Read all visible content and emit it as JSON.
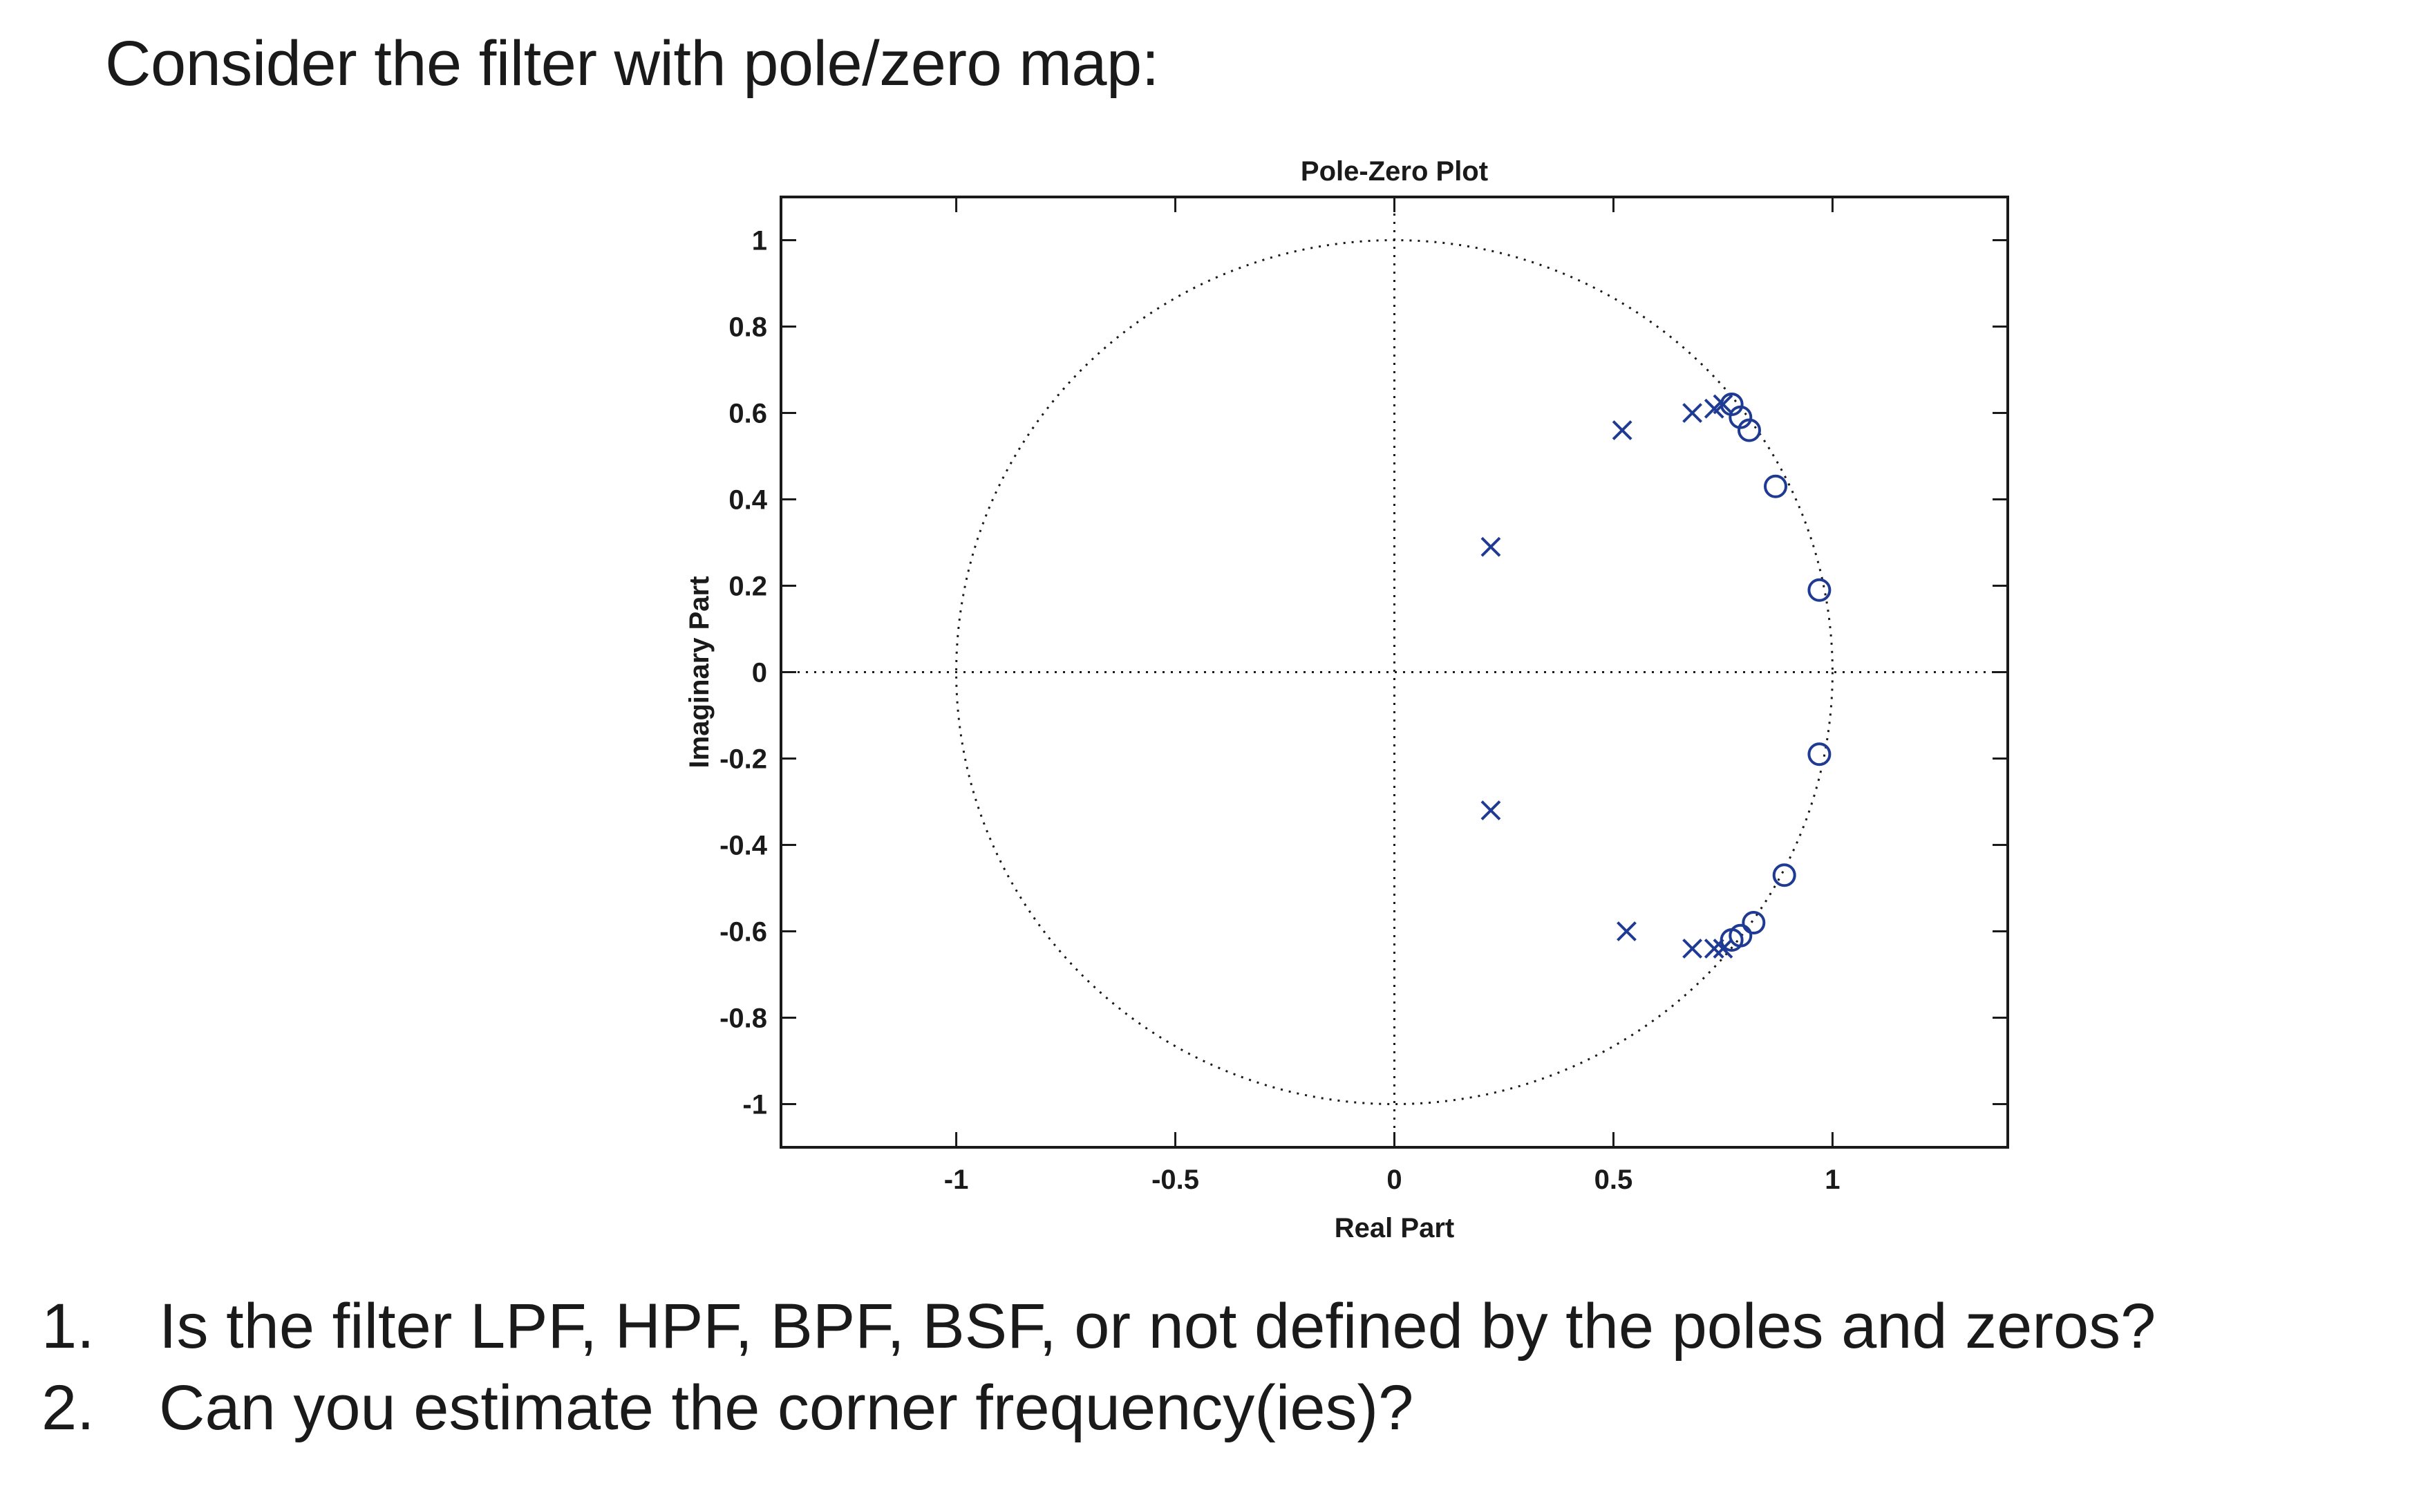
{
  "heading": "Consider the filter with pole/zero map:",
  "chart_data": {
    "type": "scatter",
    "title": "Pole-Zero Plot",
    "xlabel": "Real Part",
    "ylabel": "Imaginary Part",
    "xlim": [
      -1.4,
      1.4
    ],
    "ylim": [
      -1.1,
      1.1
    ],
    "xticks": [
      -1,
      -0.5,
      0,
      0.5,
      1
    ],
    "xtick_labels": [
      "-1",
      "-0.5",
      "0",
      "0.5",
      "1"
    ],
    "yticks": [
      1,
      0.8,
      0.6,
      0.4,
      0.2,
      0,
      -0.2,
      -0.4,
      -0.6,
      -0.8,
      -1
    ],
    "ytick_labels": [
      "1",
      "0.8",
      "0.6",
      "0.4",
      "0.2",
      "0",
      "-0.2",
      "-0.4",
      "-0.6",
      "-0.8",
      "-1"
    ],
    "unit_circle": true,
    "grid": false,
    "marker_color": "#1f3a93",
    "series": [
      {
        "name": "poles",
        "marker": "x",
        "points": [
          [
            0.22,
            0.29
          ],
          [
            0.22,
            -0.32
          ],
          [
            0.52,
            0.56
          ],
          [
            0.53,
            -0.6
          ],
          [
            0.68,
            0.6
          ],
          [
            0.68,
            -0.64
          ],
          [
            0.73,
            0.61
          ],
          [
            0.73,
            -0.64
          ],
          [
            0.75,
            0.62
          ],
          [
            0.75,
            -0.64
          ]
        ]
      },
      {
        "name": "zeros",
        "marker": "o",
        "points": [
          [
            0.77,
            0.62
          ],
          [
            0.77,
            -0.62
          ],
          [
            0.79,
            0.59
          ],
          [
            0.79,
            -0.61
          ],
          [
            0.81,
            0.56
          ],
          [
            0.82,
            -0.58
          ],
          [
            0.87,
            0.43
          ],
          [
            0.89,
            -0.47
          ],
          [
            0.97,
            0.19
          ],
          [
            0.97,
            -0.19
          ]
        ]
      }
    ]
  },
  "questions": [
    {
      "num": "1.",
      "text": "Is the filter LPF, HPF, BPF, BSF, or not defined by the poles and zeros?"
    },
    {
      "num": "2.",
      "text": "Can you estimate the corner frequency(ies)?"
    }
  ]
}
